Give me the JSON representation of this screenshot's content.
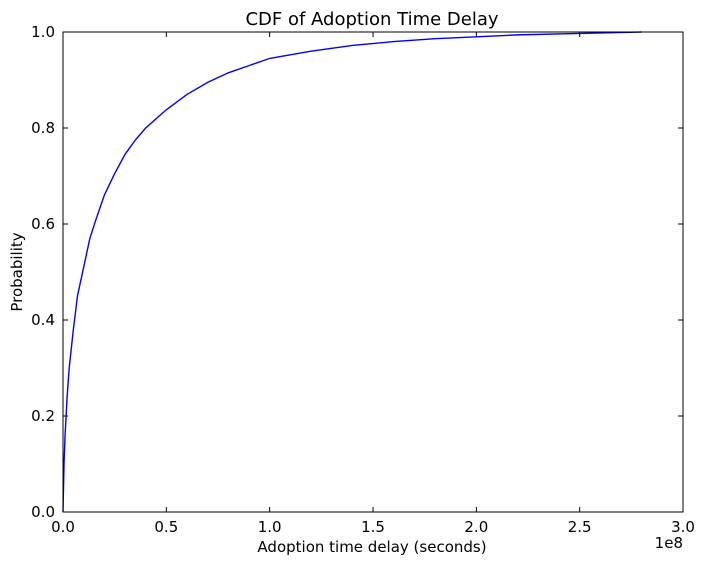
{
  "chart_data": {
    "type": "line",
    "title": "CDF of Adoption Time Delay",
    "xlabel": "Adoption time delay (seconds)",
    "ylabel": "Probability",
    "x_offset_label": "1e8",
    "xlim": [
      0,
      3.0
    ],
    "ylim": [
      0,
      1.0
    ],
    "x_ticks": [
      "0.0",
      "0.5",
      "1.0",
      "1.5",
      "2.0",
      "2.5",
      "3.0"
    ],
    "y_ticks": [
      "0.0",
      "0.2",
      "0.4",
      "0.6",
      "0.8",
      "1.0"
    ],
    "grid": false,
    "series": [
      {
        "color": "#0000ff",
        "x": [
          0,
          0.005,
          0.01,
          0.02,
          0.03,
          0.05,
          0.07,
          0.1,
          0.13,
          0.16,
          0.2,
          0.25,
          0.3,
          0.35,
          0.4,
          0.5,
          0.6,
          0.7,
          0.8,
          0.9,
          1.0,
          1.2,
          1.4,
          1.6,
          1.8,
          2.0,
          2.2,
          2.5,
          2.8
        ],
        "y": [
          0.0,
          0.1,
          0.16,
          0.24,
          0.3,
          0.38,
          0.45,
          0.51,
          0.57,
          0.61,
          0.66,
          0.705,
          0.745,
          0.775,
          0.8,
          0.838,
          0.87,
          0.895,
          0.915,
          0.93,
          0.945,
          0.96,
          0.972,
          0.98,
          0.986,
          0.99,
          0.994,
          0.997,
          1.0
        ]
      }
    ]
  }
}
